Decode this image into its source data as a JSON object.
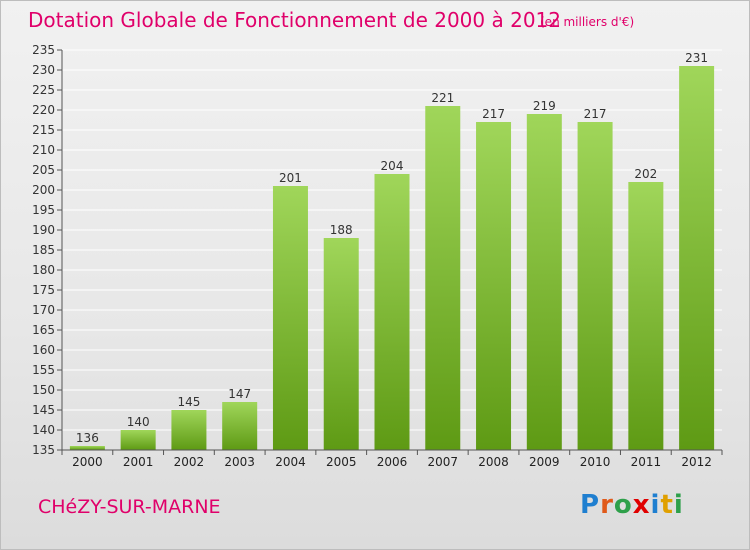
{
  "header": {
    "title": "Dotation Globale de Fonctionnement de 2000 à 2012",
    "unit": "(en milliers d'€)"
  },
  "footer": {
    "commune": "CHéZY-SUR-MARNE",
    "logo": {
      "letters": [
        "P",
        "r",
        "o",
        "x",
        "i",
        "t",
        "i"
      ],
      "colors": [
        "#1f7fd0",
        "#e05a1a",
        "#2ea04a",
        "#e00000",
        "#1f7fd0",
        "#e0a000",
        "#2ea04a"
      ]
    }
  },
  "colors": {
    "bar_top": "#a0d65a",
    "bar_bottom": "#5e9a14",
    "grid": "#ffffff",
    "axis": "#555555",
    "title": "#e0006a"
  },
  "chart_data": {
    "type": "bar",
    "title": "Dotation Globale de Fonctionnement de 2000 à 2012",
    "subtitle": "(en milliers d'€)",
    "xlabel": "",
    "ylabel": "",
    "categories": [
      "2000",
      "2001",
      "2002",
      "2003",
      "2004",
      "2005",
      "2006",
      "2007",
      "2008",
      "2009",
      "2010",
      "2011",
      "2012"
    ],
    "values": [
      136,
      140,
      145,
      147,
      201,
      188,
      204,
      221,
      217,
      219,
      217,
      202,
      231
    ],
    "ylim": [
      135,
      235
    ],
    "ytick_step": 5,
    "grid": true
  }
}
